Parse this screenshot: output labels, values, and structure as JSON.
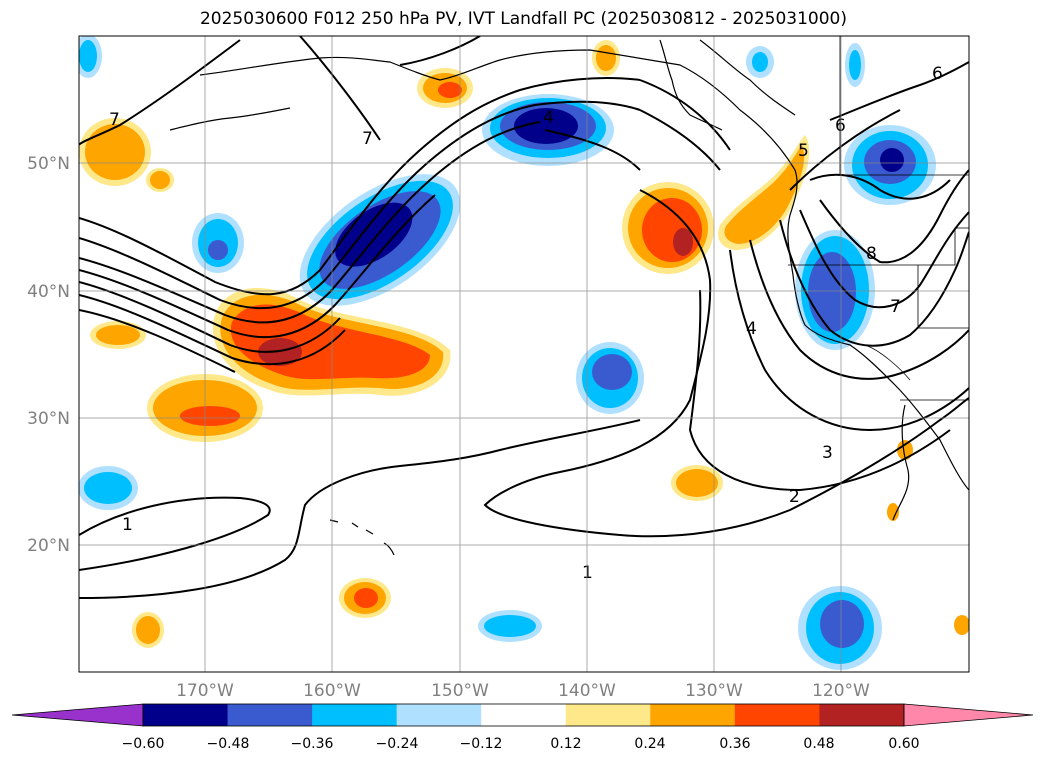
{
  "title": "2025030600 F012 250 hPa PV, IVT Landfall PC (2025030812 - 2025031000)",
  "map": {
    "lat_labels": [
      "50°N",
      "40°N",
      "30°N",
      "20°N"
    ],
    "lon_labels": [
      "170°W",
      "160°W",
      "150°W",
      "140°W",
      "130°W",
      "120°W"
    ],
    "contour_labels": [
      "1",
      "1",
      "1",
      "2",
      "3",
      "4",
      "4",
      "5",
      "6",
      "6",
      "7",
      "7",
      "7",
      "8"
    ],
    "tick_label_color": "#808080"
  },
  "colorbar": {
    "ticks": [
      "−0.60",
      "−0.48",
      "−0.36",
      "−0.24",
      "−0.12",
      "0.12",
      "0.24",
      "0.36",
      "0.48",
      "0.60"
    ],
    "colors": [
      "#9932cc",
      "#00008b",
      "#3a5bd0",
      "#00bfff",
      "#b0e0ff",
      "#ffffff",
      "#ffe88a",
      "#ffa500",
      "#ff4500",
      "#b22222",
      "#ff88aa"
    ]
  }
}
